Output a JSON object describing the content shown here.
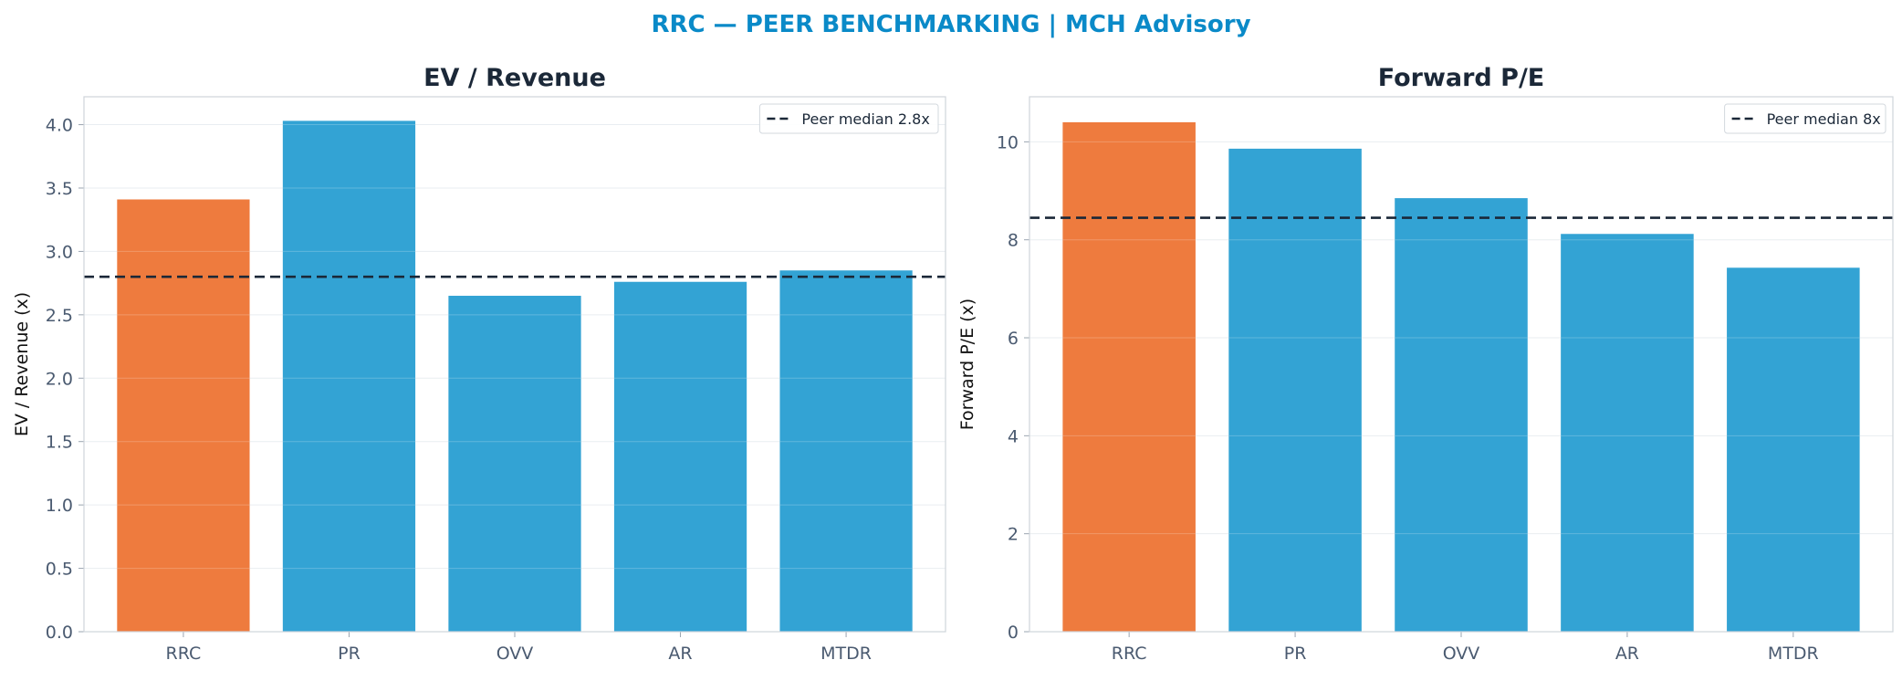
{
  "figure": {
    "title": "RRC — PEER BENCHMARKING | MCH Advisory",
    "title_color": "#0a8ac8"
  },
  "colors": {
    "highlight": "#ee7b3e",
    "peer": "#33a3d4",
    "median_line": "#1b2838",
    "grid": "#e9edf1",
    "frame": "#cfd4da"
  },
  "chart_data": [
    {
      "type": "bar",
      "title": "EV / Revenue",
      "xlabel": "",
      "ylabel": "EV / Revenue (x)",
      "categories": [
        "RRC",
        "PR",
        "OVV",
        "AR",
        "MTDR"
      ],
      "values": [
        3.41,
        4.03,
        2.65,
        2.76,
        2.85
      ],
      "highlight": "RRC",
      "ylim": [
        0,
        4.22
      ],
      "yticks": [
        "0.0",
        "0.5",
        "1.0",
        "1.5",
        "2.0",
        "2.5",
        "3.0",
        "3.5",
        "4.0"
      ],
      "ytick_values": [
        0,
        0.5,
        1.0,
        1.5,
        2.0,
        2.5,
        3.0,
        3.5,
        4.0
      ],
      "reference_line": {
        "value": 2.8,
        "style": "dashed",
        "label": "Peer median 2.8x"
      },
      "legend_position": "top-right",
      "grid": true
    },
    {
      "type": "bar",
      "title": "Forward P/E",
      "xlabel": "",
      "ylabel": "Forward P/E (x)",
      "categories": [
        "RRC",
        "PR",
        "OVV",
        "AR",
        "MTDR"
      ],
      "values": [
        10.4,
        9.86,
        8.85,
        8.12,
        7.43
      ],
      "highlight": "RRC",
      "ylim": [
        0,
        10.92
      ],
      "yticks": [
        "0",
        "2",
        "4",
        "6",
        "8",
        "10"
      ],
      "ytick_values": [
        0,
        2,
        4,
        6,
        8,
        10
      ],
      "reference_line": {
        "value": 8.45,
        "style": "dashed",
        "label": "Peer median 8x"
      },
      "legend_position": "top-right",
      "grid": true
    }
  ]
}
